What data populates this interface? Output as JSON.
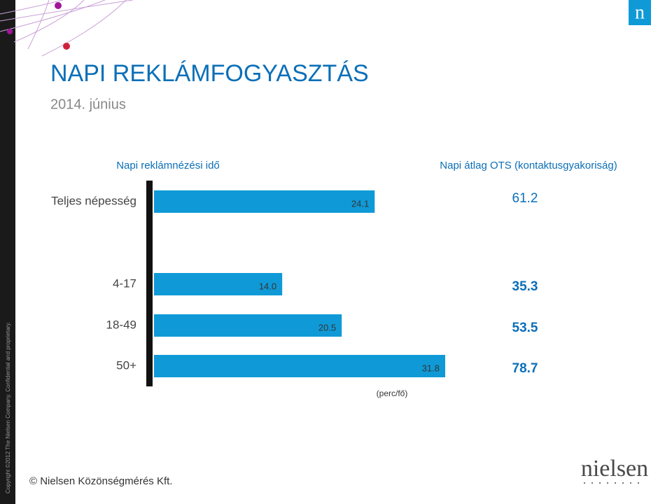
{
  "header": {
    "title": "NAPI REKLÁMFOGYASZTÁS",
    "subtitle": "2014. június"
  },
  "chart_data": {
    "type": "bar",
    "title": "Napi reklámnézési idő",
    "categories": [
      "Teljes népesség",
      "4-17",
      "18-49",
      "50+"
    ],
    "values": [
      24.1,
      14.0,
      20.5,
      31.8
    ],
    "value_labels": [
      "24.1",
      "14.0",
      "20.5",
      "31.8"
    ],
    "color": "#0f9ad7",
    "x_label": "(perc/fő)"
  },
  "ots": {
    "title": "Napi átlag OTS (kontaktusgyakoriság)",
    "values": [
      61.2,
      35.3,
      53.5,
      78.7
    ]
  },
  "footer": "© Nielsen Közönségmérés Kft.",
  "copyright": "Copyright ©2012 The Nielsen Company. Confidential and proprietary.",
  "logo": {
    "mark": "n",
    "name": "nielsen"
  }
}
